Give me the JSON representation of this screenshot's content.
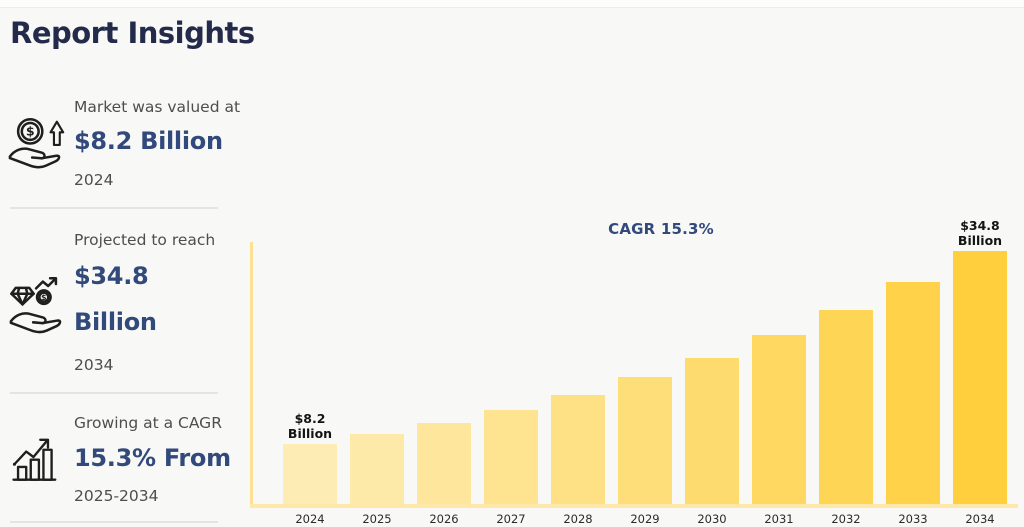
{
  "page": {
    "title": "Report Insights",
    "background": "#F8F8F6",
    "title_color": "#242A4A",
    "accent_navy": "#32497B",
    "gray_text": "#4E4E4E"
  },
  "sidebar": {
    "stats": [
      {
        "icon": "hand-coin-growth-icon",
        "label": "Market was valued at",
        "value": "$8.2 Billion",
        "period": "2024"
      },
      {
        "icon": "hand-diamond-coin-icon",
        "label": "Projected to reach",
        "value": "$34.8 Billion",
        "period": "2034"
      },
      {
        "icon": "growth-bars-arrow-icon",
        "label": "Growing at a CAGR",
        "value": "15.3% From",
        "period": "2025-2034"
      }
    ]
  },
  "chart": {
    "cagr_label": "CAGR 15.3%",
    "value_labels": [
      {
        "index": 0,
        "text": "$8.2 Billion"
      },
      {
        "index": 10,
        "text": "$34.8 Billion"
      }
    ]
  },
  "chart_data": {
    "type": "bar",
    "title": "",
    "xlabel": "",
    "ylabel": "",
    "unit": "USD Billion",
    "categories": [
      "2024",
      "2025",
      "2026",
      "2027",
      "2028",
      "2029",
      "2030",
      "2031",
      "2032",
      "2033",
      "2034"
    ],
    "values": [
      8.2,
      9.6,
      11.1,
      12.9,
      15.0,
      17.4,
      20.1,
      23.2,
      26.7,
      30.5,
      34.8
    ],
    "ylim": [
      0,
      36
    ],
    "grid": false,
    "legend": false,
    "annotations": [
      "CAGR 15.3%",
      "$8.2 Billion (2024)",
      "$34.8 Billion (2034)"
    ],
    "bar_colors": [
      "#FDEDB5",
      "#FDEAA9",
      "#FEE79D",
      "#FEE491",
      "#FEE185",
      "#FEDE79",
      "#FEDB6E",
      "#FFD862",
      "#FFD556",
      "#FFD24A",
      "#FFCF3E"
    ],
    "axis_color": "#FFE092"
  }
}
